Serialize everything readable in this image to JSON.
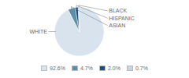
{
  "chart_data": {
    "type": "pie",
    "categories": [
      "WHITE",
      "ASIAN",
      "HISPANIC",
      "BLACK"
    ],
    "values": [
      92.6,
      4.7,
      2.0,
      0.7
    ],
    "value_labels": [
      "92.6%",
      "4.7%",
      "2.0%",
      "0.7%"
    ],
    "colors": [
      "#d9e3ed",
      "#5b8fa8",
      "#1f4e79",
      "#c5d5e4"
    ],
    "legend": "bottom"
  }
}
